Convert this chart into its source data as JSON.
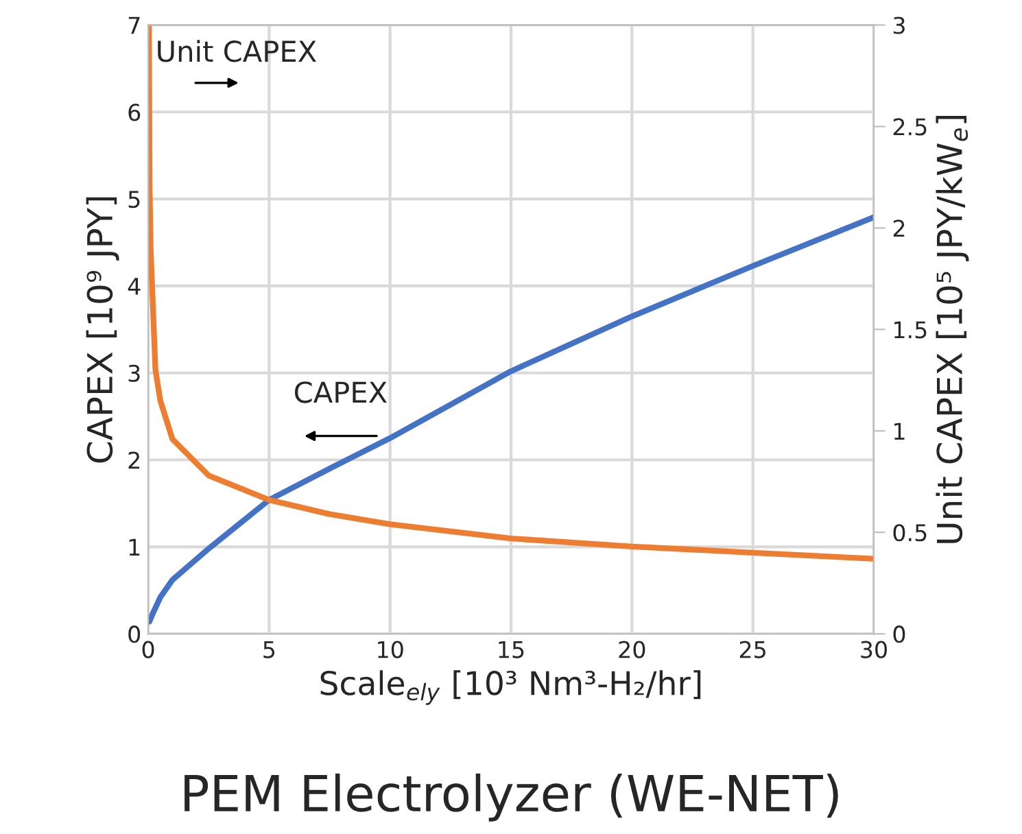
{
  "chart_data": {
    "type": "line",
    "title": "PEM Electrolyzer (WE-NET)",
    "xlabel": "Scale$_{ely}$ [10³ Nm³-H₂/hr]",
    "ylabel": "CAPEX [10⁹ JPY]",
    "y2label": "Unit CAPEX [10⁵ JPY/kW$_{e}$]",
    "annotations": [
      "Unit CAPEX",
      "CAPEX"
    ],
    "series": [
      {
        "color": "#4472c4",
        "x": [
          0.05,
          0.2,
          0.5,
          1,
          2.5,
          5,
          7.5,
          10,
          15,
          20,
          25,
          30
        ],
        "values": [
          0.14,
          0.24,
          0.42,
          0.62,
          0.98,
          1.54,
          1.9,
          2.25,
          3.02,
          3.65,
          4.23,
          4.79
        ]
      },
      {
        "color": "#ed7d31",
        "axis": "y2",
        "x": [
          0.03,
          0.06,
          0.1,
          0.2,
          0.3,
          0.5,
          1,
          2.5,
          5,
          7.5,
          10,
          15,
          20,
          25,
          30
        ],
        "values": [
          3.0,
          2.2,
          1.9,
          1.6,
          1.3,
          1.15,
          0.96,
          0.78,
          0.66,
          0.59,
          0.54,
          0.47,
          0.43,
          0.4,
          0.37
        ]
      }
    ],
    "xlim": [
      0,
      30
    ],
    "xticks": [
      0,
      5,
      10,
      15,
      20,
      25,
      30
    ],
    "ylim": [
      0,
      7
    ],
    "yticks": [
      0,
      1,
      2,
      3,
      4,
      5,
      6,
      7
    ],
    "y2lim": [
      0,
      3
    ],
    "y2ticks": [
      0,
      0.5,
      1,
      1.5,
      2,
      2.5,
      3
    ],
    "grid": true,
    "line_style": "solid",
    "marker": "none"
  }
}
